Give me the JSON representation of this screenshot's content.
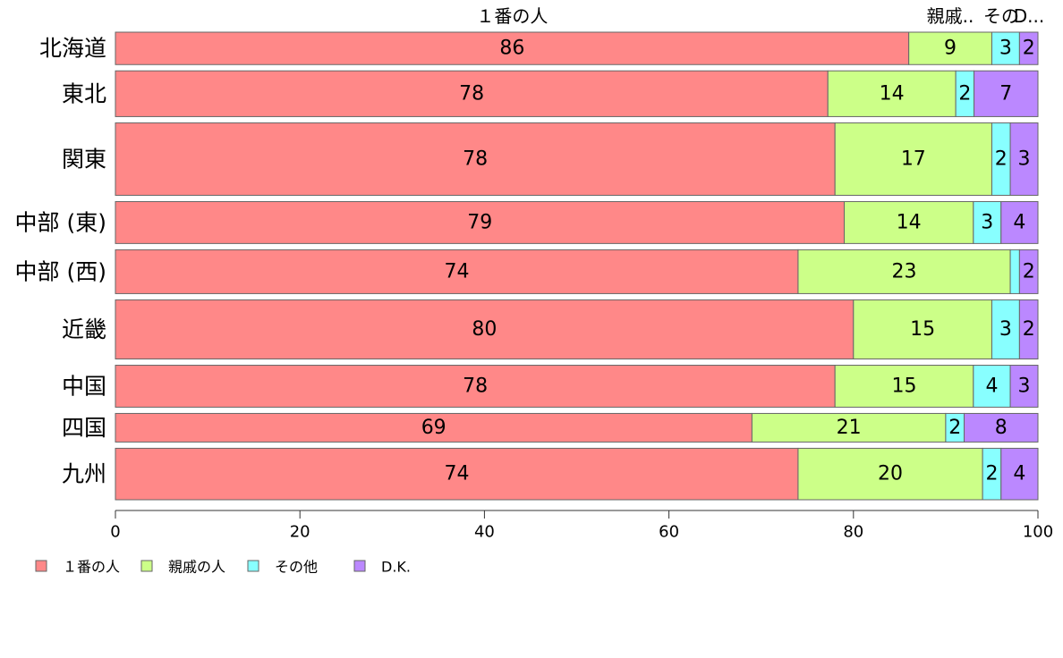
{
  "chart_data": {
    "type": "bar",
    "orientation": "horizontal",
    "stacked": true,
    "categories": [
      "北海道",
      "東北",
      "関東",
      "中部 (東)",
      "中部 (西)",
      "近畿",
      "中国",
      "四国",
      "九州"
    ],
    "series": [
      {
        "name": "１番の人",
        "color": "#ff8888",
        "values": [
          86,
          78,
          78,
          79,
          74,
          80,
          78,
          69,
          74
        ]
      },
      {
        "name": "親戚の人",
        "color": "#ccff88",
        "values": [
          9,
          14,
          17,
          14,
          23,
          15,
          15,
          21,
          20
        ]
      },
      {
        "name": "その他",
        "color": "#88ffff",
        "values": [
          3,
          2,
          2,
          3,
          1,
          3,
          4,
          2,
          2
        ]
      },
      {
        "name": "D.K.",
        "color": "#bb88ff",
        "values": [
          2,
          7,
          3,
          4,
          2,
          2,
          3,
          8,
          4
        ]
      }
    ],
    "segment_labels": [
      [
        "86",
        "9",
        "3",
        "2"
      ],
      [
        "78",
        "14",
        "2",
        "7"
      ],
      [
        "78",
        "17",
        "2",
        "3"
      ],
      [
        "79",
        "14",
        "3",
        "4"
      ],
      [
        "74",
        "23",
        "",
        "2"
      ],
      [
        "80",
        "15",
        "3",
        "2"
      ],
      [
        "78",
        "15",
        "4",
        "3"
      ],
      [
        "69",
        "21",
        "2",
        "8"
      ],
      [
        "74",
        "20",
        "2",
        "4"
      ]
    ],
    "bar_widths": [
      34,
      48,
      76,
      44,
      46,
      62,
      44,
      30,
      54
    ],
    "top_labels": [
      "１番の人",
      "",
      "親戚..",
      "その",
      "D..."
    ],
    "xlim": [
      0,
      100
    ],
    "xticks": [
      "0",
      "20",
      "40",
      "60",
      "80",
      "100"
    ],
    "legend_placement": "bottom-left",
    "grid": false
  }
}
